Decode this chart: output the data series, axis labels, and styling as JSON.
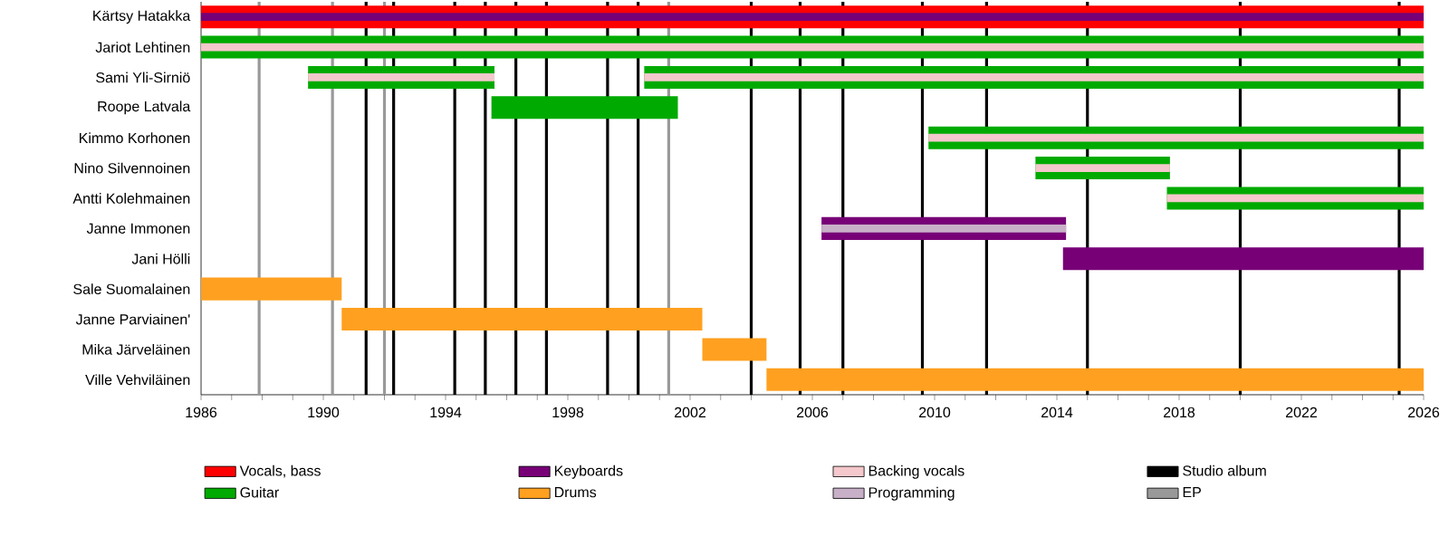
{
  "chart_data": {
    "type": "bar",
    "orientation": "horizontal",
    "legend": "bottom",
    "categories": [
      "Kärtsy Hatakka",
      "Jariot Lehtinen",
      "Sami Yli-Sirniö",
      "Roope Latvala",
      "Kimmo Korhonen",
      "Nino Silvennoinen",
      "Antti Kolehmainen",
      "Janne Immonen",
      "Jani Hölli",
      "Sale Suomalainen",
      "Janne Parviainen'",
      "Mika Järveläinen",
      "Ville Vehviläinen"
    ],
    "series": [
      {
        "name": "Vocals, bass",
        "color": "#ff0000",
        "base": [
          1986,
          null,
          null,
          null,
          null,
          null,
          null,
          null,
          null,
          null,
          null,
          null,
          null
        ],
        "values": [
          40,
          null,
          null,
          null,
          null,
          null,
          null,
          null,
          null,
          null,
          null,
          null,
          null
        ]
      },
      {
        "name": "Guitar",
        "color": "#00aa00",
        "base": [
          null,
          1986,
          1989.5,
          1995.5,
          2009.8,
          2013.3,
          2017.6,
          null,
          null,
          null,
          null,
          null,
          null
        ],
        "values": [
          null,
          40,
          6.1,
          6.1,
          16.2,
          4.4,
          8.4,
          null,
          null,
          null,
          null,
          null,
          null
        ]
      },
      {
        "color": "#00aa00",
        "base": [
          null,
          null,
          2000.5,
          null,
          null,
          null,
          null,
          null,
          null,
          null,
          null,
          null,
          null
        ],
        "values": [
          null,
          null,
          25.5,
          null,
          null,
          null,
          null,
          null,
          null,
          null,
          null,
          null,
          null
        ]
      },
      {
        "name": "Keyboards",
        "color": "#770077",
        "base": [
          1986,
          null,
          null,
          null,
          null,
          null,
          null,
          2006.3,
          2014.2,
          null,
          null,
          null,
          null
        ],
        "values": [
          40,
          null,
          null,
          null,
          null,
          null,
          null,
          8.0,
          11.8,
          null,
          null,
          null,
          null
        ]
      },
      {
        "name": "Drums",
        "color": "#ffa020",
        "base": [
          null,
          null,
          null,
          null,
          null,
          null,
          null,
          null,
          null,
          1986,
          1990.6,
          2002.4,
          2004.5
        ],
        "values": [
          null,
          null,
          null,
          null,
          null,
          null,
          null,
          null,
          null,
          4.6,
          11.8,
          2.1,
          21.5
        ]
      },
      {
        "name": "Backing vocals",
        "color": "#f4c8cc",
        "base": [
          null,
          1986,
          1989.5,
          null,
          2009.8,
          2013.3,
          2017.6,
          null,
          null,
          null,
          null,
          null,
          null
        ],
        "values": [
          null,
          40,
          6.1,
          null,
          16.2,
          4.4,
          8.4,
          null,
          null,
          null,
          null,
          null,
          null
        ]
      },
      {
        "color": "#f4c8cc",
        "base": [
          null,
          null,
          2000.5,
          null,
          null,
          null,
          null,
          null,
          null,
          null,
          null,
          null,
          null
        ],
        "values": [
          null,
          null,
          25.5,
          null,
          null,
          null,
          null,
          null,
          null,
          null,
          null,
          null,
          null
        ]
      },
      {
        "name": "Programming",
        "color": "#c8b0c8",
        "base": [
          null,
          null,
          null,
          null,
          null,
          null,
          null,
          2006.3,
          null,
          null,
          null,
          null,
          null
        ],
        "values": [
          null,
          null,
          null,
          null,
          null,
          null,
          null,
          8.0,
          null,
          null,
          null,
          null,
          null
        ]
      }
    ],
    "ref_lines": [
      {
        "axis": "x",
        "value": 1991.4,
        "label": "Studio album",
        "color": "#000000"
      },
      {
        "axis": "x",
        "value": 1992.3,
        "color": "#000000"
      },
      {
        "axis": "x",
        "value": 1994.3,
        "color": "#000000"
      },
      {
        "axis": "x",
        "value": 1995.3,
        "color": "#000000"
      },
      {
        "axis": "x",
        "value": 1996.3,
        "color": "#000000"
      },
      {
        "axis": "x",
        "value": 1997.3,
        "color": "#000000"
      },
      {
        "axis": "x",
        "value": 1999.3,
        "color": "#000000"
      },
      {
        "axis": "x",
        "value": 2000.3,
        "color": "#000000"
      },
      {
        "axis": "x",
        "value": 2004.0,
        "color": "#000000"
      },
      {
        "axis": "x",
        "value": 2005.6,
        "color": "#000000"
      },
      {
        "axis": "x",
        "value": 2007.0,
        "color": "#000000"
      },
      {
        "axis": "x",
        "value": 2009.6,
        "color": "#000000"
      },
      {
        "axis": "x",
        "value": 2011.7,
        "color": "#000000"
      },
      {
        "axis": "x",
        "value": 2015.0,
        "color": "#000000"
      },
      {
        "axis": "x",
        "value": 2020.0,
        "color": "#000000"
      },
      {
        "axis": "x",
        "value": 2025.2,
        "color": "#000000"
      },
      {
        "axis": "x",
        "value": 1987.9,
        "label": "EP",
        "color": "#999999"
      },
      {
        "axis": "x",
        "value": 1990.3,
        "color": "#999999"
      },
      {
        "axis": "x",
        "value": 1992.0,
        "color": "#999999"
      },
      {
        "axis": "x",
        "value": 2001.3,
        "color": "#999999"
      }
    ],
    "xlim": [
      1986,
      2026
    ],
    "xticks": [
      1986,
      {
        "value": 1987,
        "label": null
      },
      {
        "value": 1988,
        "label": null
      },
      {
        "value": 1989,
        "label": null
      },
      1990,
      {
        "value": 1991,
        "label": null
      },
      {
        "value": 1992,
        "label": null
      },
      {
        "value": 1993,
        "label": null
      },
      1994,
      {
        "value": 1995,
        "label": null
      },
      {
        "value": 1996,
        "label": null
      },
      {
        "value": 1997,
        "label": null
      },
      1998,
      {
        "value": 1999,
        "label": null
      },
      {
        "value": 2000,
        "label": null
      },
      {
        "value": 2001,
        "label": null
      },
      2002,
      {
        "value": 2003,
        "label": null
      },
      {
        "value": 2004,
        "label": null
      },
      {
        "value": 2005,
        "label": null
      },
      2006,
      {
        "value": 2007,
        "label": null
      },
      {
        "value": 2008,
        "label": null
      },
      {
        "value": 2009,
        "label": null
      },
      2010,
      {
        "value": 2011,
        "label": null
      },
      {
        "value": 2012,
        "label": null
      },
      {
        "value": 2013,
        "label": null
      },
      2014,
      {
        "value": 2015,
        "label": null
      },
      {
        "value": 2016,
        "label": null
      },
      {
        "value": 2017,
        "label": null
      },
      2018,
      {
        "value": 2019,
        "label": null
      },
      {
        "value": 2020,
        "label": null
      },
      {
        "value": 2021,
        "label": null
      },
      2022,
      {
        "value": 2023,
        "label": null
      },
      {
        "value": 2024,
        "label": null
      },
      {
        "value": 2025,
        "label": null
      },
      2026
    ]
  }
}
